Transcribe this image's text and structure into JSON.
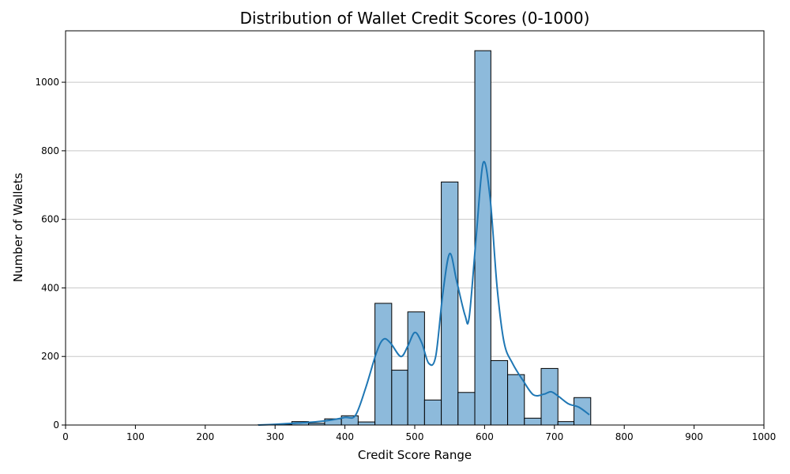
{
  "chart_data": {
    "type": "bar",
    "title": "Distribution of Wallet Credit Scores (0-1000)",
    "xlabel": "Credit Score Range",
    "ylabel": "Number of Wallets",
    "xlim": [
      0,
      1000
    ],
    "ylim": [
      0,
      1150
    ],
    "grid": "y",
    "xticks": [
      0,
      100,
      200,
      300,
      400,
      500,
      600,
      700,
      800,
      900,
      1000
    ],
    "yticks": [
      0,
      200,
      400,
      600,
      800,
      1000
    ],
    "bins": [
      {
        "x0": 276,
        "x1": 300,
        "count": 1
      },
      {
        "x0": 300,
        "x1": 324,
        "count": 2
      },
      {
        "x0": 324,
        "x1": 348,
        "count": 10
      },
      {
        "x0": 348,
        "x1": 371,
        "count": 5
      },
      {
        "x0": 371,
        "x1": 395,
        "count": 18
      },
      {
        "x0": 395,
        "x1": 419,
        "count": 27
      },
      {
        "x0": 419,
        "x1": 443,
        "count": 9
      },
      {
        "x0": 443,
        "x1": 467,
        "count": 355
      },
      {
        "x0": 467,
        "x1": 490,
        "count": 160
      },
      {
        "x0": 490,
        "x1": 514,
        "count": 330
      },
      {
        "x0": 514,
        "x1": 538,
        "count": 73
      },
      {
        "x0": 538,
        "x1": 562,
        "count": 709
      },
      {
        "x0": 562,
        "x1": 586,
        "count": 95
      },
      {
        "x0": 586,
        "x1": 609,
        "count": 1092
      },
      {
        "x0": 609,
        "x1": 633,
        "count": 188
      },
      {
        "x0": 633,
        "x1": 657,
        "count": 147
      },
      {
        "x0": 657,
        "x1": 681,
        "count": 20
      },
      {
        "x0": 681,
        "x1": 705,
        "count": 165
      },
      {
        "x0": 705,
        "x1": 728,
        "count": 10
      },
      {
        "x0": 728,
        "x1": 752,
        "count": 80
      }
    ],
    "kde": [
      [
        276,
        0
      ],
      [
        300,
        2
      ],
      [
        325,
        5
      ],
      [
        350,
        8
      ],
      [
        375,
        13
      ],
      [
        400,
        22
      ],
      [
        415,
        28
      ],
      [
        430,
        110
      ],
      [
        445,
        210
      ],
      [
        455,
        250
      ],
      [
        465,
        240
      ],
      [
        480,
        200
      ],
      [
        490,
        230
      ],
      [
        500,
        270
      ],
      [
        510,
        240
      ],
      [
        520,
        180
      ],
      [
        530,
        200
      ],
      [
        540,
        380
      ],
      [
        550,
        500
      ],
      [
        560,
        420
      ],
      [
        572,
        320
      ],
      [
        578,
        315
      ],
      [
        588,
        550
      ],
      [
        598,
        765
      ],
      [
        608,
        660
      ],
      [
        618,
        400
      ],
      [
        628,
        240
      ],
      [
        640,
        180
      ],
      [
        655,
        130
      ],
      [
        670,
        88
      ],
      [
        685,
        90
      ],
      [
        695,
        97
      ],
      [
        705,
        85
      ],
      [
        720,
        62
      ],
      [
        735,
        52
      ],
      [
        750,
        30
      ]
    ],
    "colors": {
      "bar_fill": "#8dbadb",
      "kde_line": "#1f77b4"
    }
  }
}
